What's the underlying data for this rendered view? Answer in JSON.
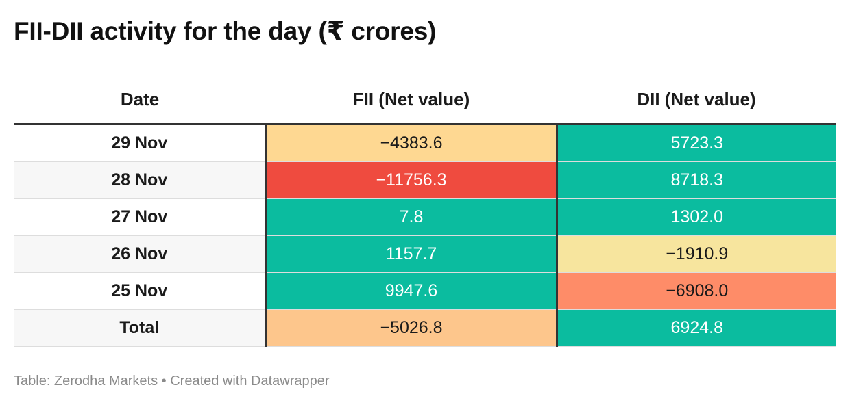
{
  "title": "FII-DII activity for the day (₹ crores)",
  "source": "Table: Zerodha Markets • Created with Datawrapper",
  "colors": {
    "positive": "#0bbc9f",
    "large_negative": "#ef4b3f",
    "medium_negative": "#fe8c68",
    "small_negative_fii": "#fed892",
    "small_negative_dii": "#f7e59e",
    "total_negative": "#fdc68c",
    "row_even": "#ffffff",
    "row_odd": "#f7f7f7",
    "value_text_light": "#ffffff",
    "value_text_dark": "#1a1a1a"
  },
  "chart_data": {
    "type": "table",
    "columns": [
      "Date",
      "FII (Net value)",
      "DII (Net value)"
    ],
    "rows": [
      {
        "date": "29 Nov",
        "fii": "−4383.6",
        "dii": "5723.3"
      },
      {
        "date": "28 Nov",
        "fii": "−11756.3",
        "dii": "8718.3"
      },
      {
        "date": "27 Nov",
        "fii": "7.8",
        "dii": "1302.0"
      },
      {
        "date": "26 Nov",
        "fii": "1157.7",
        "dii": "−1910.9"
      },
      {
        "date": "25 Nov",
        "fii": "9947.6",
        "dii": "−6908.0"
      },
      {
        "date": "Total",
        "fii": "−5026.8",
        "dii": "6924.8"
      }
    ],
    "cell_colors": [
      {
        "fii": "#fed892",
        "dii": "#0bbc9f"
      },
      {
        "fii": "#ef4b3f",
        "dii": "#0bbc9f"
      },
      {
        "fii": "#0bbc9f",
        "dii": "#0bbc9f"
      },
      {
        "fii": "#0bbc9f",
        "dii": "#f7e59e"
      },
      {
        "fii": "#0bbc9f",
        "dii": "#fe8c68"
      },
      {
        "fii": "#fdc68c",
        "dii": "#0bbc9f"
      }
    ]
  }
}
